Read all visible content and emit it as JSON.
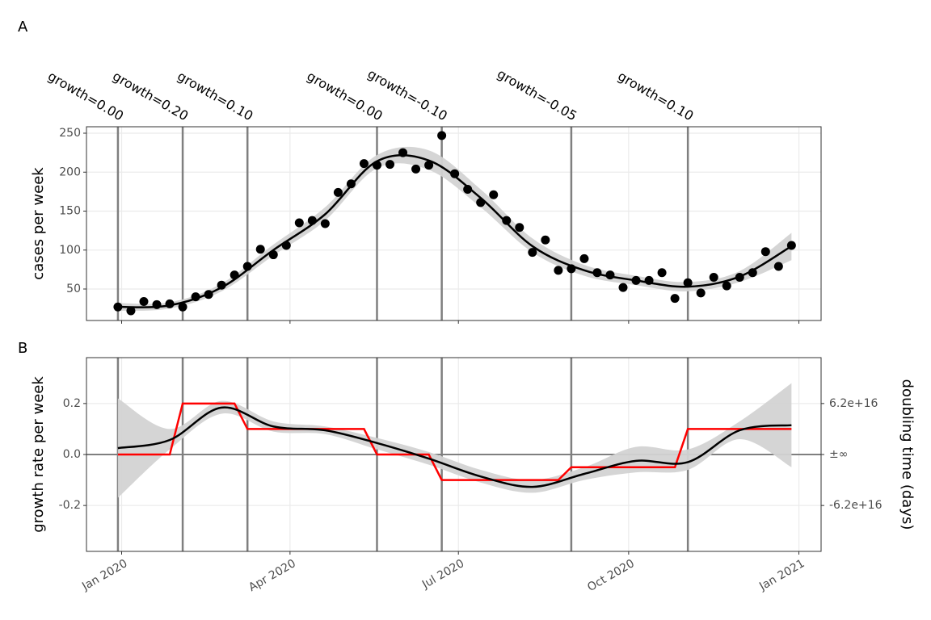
{
  "chart_data": [
    {
      "label": "A",
      "type": "scatter",
      "ylabel": "cases per week",
      "color": "#000000",
      "x": [
        "2019-12-30",
        "2020-01-06",
        "2020-01-13",
        "2020-01-20",
        "2020-01-27",
        "2020-02-03",
        "2020-02-10",
        "2020-02-17",
        "2020-02-24",
        "2020-03-02",
        "2020-03-09",
        "2020-03-16",
        "2020-03-23",
        "2020-03-30",
        "2020-04-06",
        "2020-04-13",
        "2020-04-20",
        "2020-04-27",
        "2020-05-04",
        "2020-05-11",
        "2020-05-18",
        "2020-05-25",
        "2020-06-01",
        "2020-06-08",
        "2020-06-15",
        "2020-06-22",
        "2020-06-29",
        "2020-07-06",
        "2020-07-13",
        "2020-07-20",
        "2020-07-27",
        "2020-08-03",
        "2020-08-10",
        "2020-08-17",
        "2020-08-24",
        "2020-08-31",
        "2020-09-07",
        "2020-09-14",
        "2020-09-21",
        "2020-09-28",
        "2020-10-05",
        "2020-10-12",
        "2020-10-19",
        "2020-10-26",
        "2020-11-02",
        "2020-11-09",
        "2020-11-16",
        "2020-11-23",
        "2020-11-30",
        "2020-12-07",
        "2020-12-14",
        "2020-12-21",
        "2020-12-28"
      ],
      "values": [
        27,
        22,
        34,
        30,
        31,
        27,
        40,
        43,
        55,
        68,
        79,
        101,
        94,
        106,
        135,
        138,
        134,
        174,
        185,
        211,
        209,
        210,
        225,
        204,
        209,
        247,
        198,
        178,
        161,
        171,
        138,
        129,
        97,
        113,
        74,
        76,
        89,
        71,
        68,
        52,
        61,
        61,
        71,
        38,
        58,
        45,
        65,
        54,
        65,
        71,
        98,
        79,
        106
      ],
      "fit": {
        "color": "#000000",
        "band_color": "#d3d3d3",
        "x": [
          "2019-12-30",
          "2020-01-27",
          "2020-02-24",
          "2020-03-23",
          "2020-04-20",
          "2020-05-18",
          "2020-06-15",
          "2020-07-13",
          "2020-08-10",
          "2020-09-07",
          "2020-10-05",
          "2020-11-02",
          "2020-11-30",
          "2020-12-28"
        ],
        "values": [
          27,
          29,
          52,
          100,
          146,
          214,
          215,
          167,
          105,
          74,
          61,
          53,
          66,
          105
        ],
        "lower": [
          22,
          25,
          47,
          93,
          138,
          205,
          203,
          155,
          97,
          67,
          55,
          47,
          59,
          87
        ],
        "upper": [
          32,
          33,
          57,
          107,
          155,
          222,
          228,
          178,
          115,
          81,
          67,
          59,
          73,
          122
        ]
      },
      "annotations": [
        {
          "x": "2019-12-30",
          "label": "growth=0.00"
        },
        {
          "x": "2020-02-03",
          "label": "growth=0.20"
        },
        {
          "x": "2020-03-09",
          "label": "growth=0.10"
        },
        {
          "x": "2020-05-18",
          "label": "growth=0.00"
        },
        {
          "x": "2020-06-22",
          "label": "growth=-0.10"
        },
        {
          "x": "2020-08-31",
          "label": "growth=-0.05"
        },
        {
          "x": "2020-11-02",
          "label": "growth=0.10"
        }
      ],
      "ylim": [
        9.6,
        258.3
      ],
      "yticks": [
        50,
        100,
        150,
        200,
        250
      ],
      "grid": true
    },
    {
      "label": "B",
      "type": "line",
      "ylabel": "growth rate per week",
      "y2label": "doubling time (days)",
      "series": [
        {
          "color": "#ff0000",
          "values": [
            0,
            0,
            0,
            0,
            0,
            0.2,
            0.2,
            0.2,
            0.2,
            0.2,
            0.1,
            0.1,
            0.1,
            0.1,
            0.1,
            0.1,
            0.1,
            0.1,
            0.1,
            0.1,
            0,
            0,
            0,
            0,
            0,
            -0.1,
            -0.1,
            -0.1,
            -0.1,
            -0.1,
            -0.1,
            -0.1,
            -0.1,
            -0.1,
            -0.1,
            -0.05,
            -0.05,
            -0.05,
            -0.05,
            -0.05,
            -0.05,
            -0.05,
            -0.05,
            -0.05,
            0.1,
            0.1,
            0.1,
            0.1,
            0.1,
            0.1,
            0.1,
            0.1,
            0.1
          ]
        }
      ],
      "fit": {
        "color": "#000000",
        "band_color": "#d3d3d3",
        "values": [
          0.025,
          0.057,
          0.184,
          0.11,
          0.095,
          0.045,
          -0.016,
          -0.086,
          -0.127,
          -0.076,
          -0.025,
          -0.03,
          0.095,
          0.115
        ],
        "lower": [
          -0.17,
          0.02,
          0.16,
          0.09,
          0.08,
          0.02,
          -0.04,
          -0.11,
          -0.15,
          -0.1,
          -0.07,
          -0.06,
          0.06,
          -0.05
        ],
        "upper": [
          0.22,
          0.1,
          0.21,
          0.13,
          0.11,
          0.065,
          0.01,
          -0.06,
          -0.1,
          -0.05,
          0.03,
          0.02,
          0.13,
          0.28
        ]
      },
      "hline": 0,
      "xlim": [
        "2019-12-13",
        "2021-01-13"
      ],
      "xticks": [
        {
          "value": "2020-01-01",
          "label": "Jan 2020"
        },
        {
          "value": "2020-04-01",
          "label": "Apr 2020"
        },
        {
          "value": "2020-07-01",
          "label": "Jul 2020"
        },
        {
          "value": "2020-10-01",
          "label": "Oct 2020"
        },
        {
          "value": "2021-01-01",
          "label": "Jan 2021"
        }
      ],
      "ylim": [
        -0.38,
        0.38
      ],
      "yticks": [
        {
          "value": -0.2,
          "label": "-0.2"
        },
        {
          "value": 0,
          "label": "0.0"
        },
        {
          "value": 0.2,
          "label": "0.2"
        }
      ],
      "y2lim": [
        -0.38,
        0.38
      ],
      "y2ticks": [
        {
          "value": -0.2,
          "label": "-6.2e+16"
        },
        {
          "value": 0,
          "label": "±∞"
        },
        {
          "value": 0.2,
          "label": "6.2e+16"
        }
      ],
      "grid": true
    }
  ]
}
